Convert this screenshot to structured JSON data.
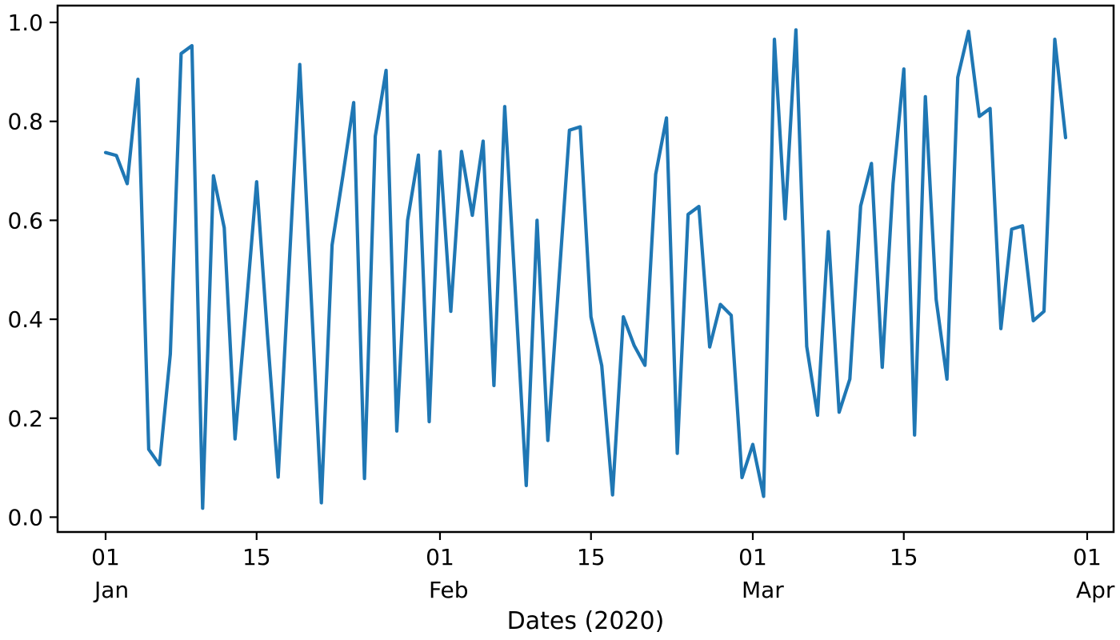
{
  "figure": {
    "background_color": "#ffffff",
    "title": ""
  },
  "chart_data": {
    "type": "line",
    "title": "",
    "xlabel": "Dates (2020)",
    "ylabel": "",
    "grid": false,
    "legend": null,
    "line_color": "#1f77b4",
    "x_start_date": "2020-01-01",
    "x_frequency": "daily",
    "n_points": 90,
    "xlim_days_from_start": [
      -4.45,
      93.45
    ],
    "ylim": [
      -0.03,
      1.034
    ],
    "series": [
      {
        "name": "values",
        "color": "#1f77b4",
        "values": [
          0.737,
          0.731,
          0.674,
          0.885,
          0.137,
          0.106,
          0.33,
          0.937,
          0.953,
          0.018,
          0.69,
          0.585,
          0.158,
          0.415,
          0.678,
          0.37,
          0.081,
          0.5,
          0.915,
          0.47,
          0.029,
          0.55,
          0.69,
          0.838,
          0.078,
          0.77,
          0.903,
          0.174,
          0.6,
          0.732,
          0.193,
          0.739,
          0.416,
          0.739,
          0.61,
          0.76,
          0.266,
          0.83,
          0.45,
          0.064,
          0.6,
          0.155,
          0.47,
          0.782,
          0.789,
          0.405,
          0.306,
          0.045,
          0.405,
          0.347,
          0.307,
          0.693,
          0.807,
          0.129,
          0.612,
          0.628,
          0.344,
          0.43,
          0.408,
          0.08,
          0.147,
          0.042,
          0.966,
          0.603,
          0.985,
          0.345,
          0.206,
          0.577,
          0.212,
          0.279,
          0.629,
          0.715,
          0.303,
          0.674,
          0.906,
          0.166,
          0.85,
          0.44,
          0.279,
          0.889,
          0.982,
          0.81,
          0.826,
          0.381,
          0.582,
          0.589,
          0.397,
          0.416,
          0.966,
          0.767
        ]
      }
    ],
    "x_ticks": [
      {
        "day_offset": 0,
        "label": "01",
        "month_label": "Jan"
      },
      {
        "day_offset": 14,
        "label": "15",
        "month_label": ""
      },
      {
        "day_offset": 31,
        "label": "01",
        "month_label": "Feb"
      },
      {
        "day_offset": 45,
        "label": "15",
        "month_label": ""
      },
      {
        "day_offset": 60,
        "label": "01",
        "month_label": "Mar"
      },
      {
        "day_offset": 74,
        "label": "15",
        "month_label": ""
      },
      {
        "day_offset": 91,
        "label": "01",
        "month_label": "Apr"
      }
    ],
    "y_ticks": [
      {
        "value": 0.0,
        "label": "0.0"
      },
      {
        "value": 0.2,
        "label": "0.2"
      },
      {
        "value": 0.4,
        "label": "0.4"
      },
      {
        "value": 0.6,
        "label": "0.6"
      },
      {
        "value": 0.8,
        "label": "0.8"
      },
      {
        "value": 1.0,
        "label": "1.0"
      }
    ]
  }
}
